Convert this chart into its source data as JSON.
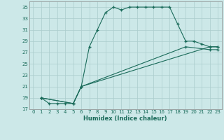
{
  "xlabel": "Humidex (Indice chaleur)",
  "bg_color": "#cce8e8",
  "grid_color": "#aacccc",
  "line_color": "#1a6b5a",
  "xlim": [
    -0.5,
    23.5
  ],
  "ylim": [
    17,
    36
  ],
  "xticks": [
    0,
    1,
    2,
    3,
    4,
    5,
    6,
    7,
    8,
    9,
    10,
    11,
    12,
    13,
    14,
    15,
    16,
    17,
    18,
    19,
    20,
    21,
    22,
    23
  ],
  "yticks": [
    17,
    19,
    21,
    23,
    25,
    27,
    29,
    31,
    33,
    35
  ],
  "lines": [
    {
      "x": [
        1,
        2,
        3,
        4,
        5,
        6,
        7,
        8,
        9,
        10,
        11,
        12,
        13,
        14,
        15,
        16,
        17,
        18,
        19,
        20,
        21,
        22,
        23
      ],
      "y": [
        19,
        18,
        18,
        18,
        18,
        21,
        28,
        31,
        34,
        35,
        34.5,
        35,
        35,
        35,
        35,
        35,
        35,
        32,
        29,
        29,
        28.5,
        28,
        28
      ]
    },
    {
      "x": [
        1,
        5,
        6,
        22,
        23
      ],
      "y": [
        19,
        18,
        21,
        28,
        28
      ]
    },
    {
      "x": [
        1,
        5,
        6,
        19,
        22,
        23
      ],
      "y": [
        19,
        18,
        21,
        28,
        27.5,
        27.5
      ]
    }
  ]
}
